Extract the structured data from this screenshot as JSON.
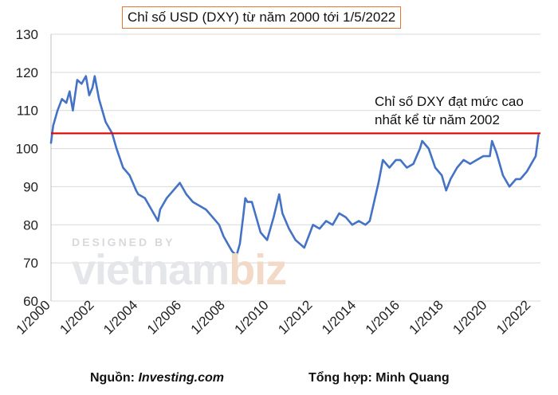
{
  "chart_data": {
    "type": "line",
    "title": "Chỉ số USD (DXY) từ năm 2000 tới 1/5/2022",
    "xlabel": "",
    "ylabel": "",
    "ylim": [
      60,
      130
    ],
    "xlim": [
      2000,
      2022.42
    ],
    "y_ticks": [
      "60",
      "70",
      "80",
      "90",
      "100",
      "110",
      "120",
      "130"
    ],
    "x_ticks": [
      {
        "x": 2000,
        "label": "1/2000"
      },
      {
        "x": 2002,
        "label": "1/2002"
      },
      {
        "x": 2004,
        "label": "1/2004"
      },
      {
        "x": 2006,
        "label": "1/2006"
      },
      {
        "x": 2008,
        "label": "1/2008"
      },
      {
        "x": 2010,
        "label": "1/2010"
      },
      {
        "x": 2012,
        "label": "1/2012"
      },
      {
        "x": 2014,
        "label": "1/2014"
      },
      {
        "x": 2016,
        "label": "1/2016"
      },
      {
        "x": 2018,
        "label": "1/2018"
      },
      {
        "x": 2020,
        "label": "1/2020"
      },
      {
        "x": 2022,
        "label": "1/2022"
      }
    ],
    "grid": "horizontal",
    "line_color": "#4472c4",
    "series": [
      {
        "x": [
          2000.0,
          2000.1,
          2000.3,
          2000.5,
          2000.7,
          2000.85,
          2001.0,
          2001.2,
          2001.4,
          2001.6,
          2001.75,
          2001.9,
          2002.0,
          2002.2,
          2002.5,
          2002.8,
          2003.0,
          2003.3,
          2003.6,
          2003.9,
          2004.0,
          2004.3,
          2004.6,
          2004.9,
          2005.0,
          2005.3,
          2005.6,
          2005.9,
          2006.2,
          2006.5,
          2006.8,
          2007.1,
          2007.4,
          2007.7,
          2007.9,
          2008.1,
          2008.3,
          2008.5,
          2008.65,
          2008.8,
          2008.9,
          2009.0,
          2009.2,
          2009.4,
          2009.6,
          2009.9,
          2010.2,
          2010.45,
          2010.6,
          2010.9,
          2011.2,
          2011.4,
          2011.6,
          2011.8,
          2012.0,
          2012.3,
          2012.6,
          2012.9,
          2013.2,
          2013.5,
          2013.8,
          2014.1,
          2014.4,
          2014.6,
          2014.8,
          2015.0,
          2015.2,
          2015.5,
          2015.8,
          2016.0,
          2016.3,
          2016.6,
          2016.9,
          2017.0,
          2017.3,
          2017.6,
          2017.9,
          2018.1,
          2018.3,
          2018.6,
          2018.9,
          2019.2,
          2019.5,
          2019.8,
          2020.1,
          2020.2,
          2020.4,
          2020.7,
          2021.0,
          2021.3,
          2021.5,
          2021.8,
          2022.0,
          2022.2,
          2022.33
        ],
        "values": [
          101.5,
          106,
          110,
          113,
          112,
          115,
          110,
          118,
          117,
          119,
          114,
          116,
          119,
          113,
          107,
          104,
          100,
          95,
          93,
          89,
          88,
          87,
          84,
          81,
          84,
          87,
          89,
          91,
          88,
          86,
          85,
          84,
          82,
          80,
          77,
          75,
          73,
          72,
          75,
          82,
          87,
          86,
          86,
          82,
          78,
          76,
          82,
          88,
          83,
          79,
          76,
          75,
          74,
          77,
          80,
          79,
          81,
          80,
          83,
          82,
          80,
          81,
          80,
          81,
          86,
          91,
          97,
          95,
          97,
          97,
          95,
          96,
          100,
          102,
          100,
          95,
          93,
          89,
          92,
          95,
          97,
          96,
          97,
          98,
          98,
          102,
          99,
          93,
          90,
          92,
          92,
          94,
          96,
          98,
          103.5
        ]
      }
    ],
    "reference_line": {
      "y": 104,
      "color": "#e00000"
    },
    "annotation": [
      "Chỉ số DXY đạt mức cao",
      "nhất kể từ năm 2002"
    ]
  },
  "watermark": {
    "top": "DESIGNED BY",
    "main": "vietnam",
    "accent": "biz"
  },
  "footer": {
    "source_label": "Nguồn:",
    "source_value": "Investing.com",
    "compiled_label": "Tổng hợp: Minh Quang"
  }
}
